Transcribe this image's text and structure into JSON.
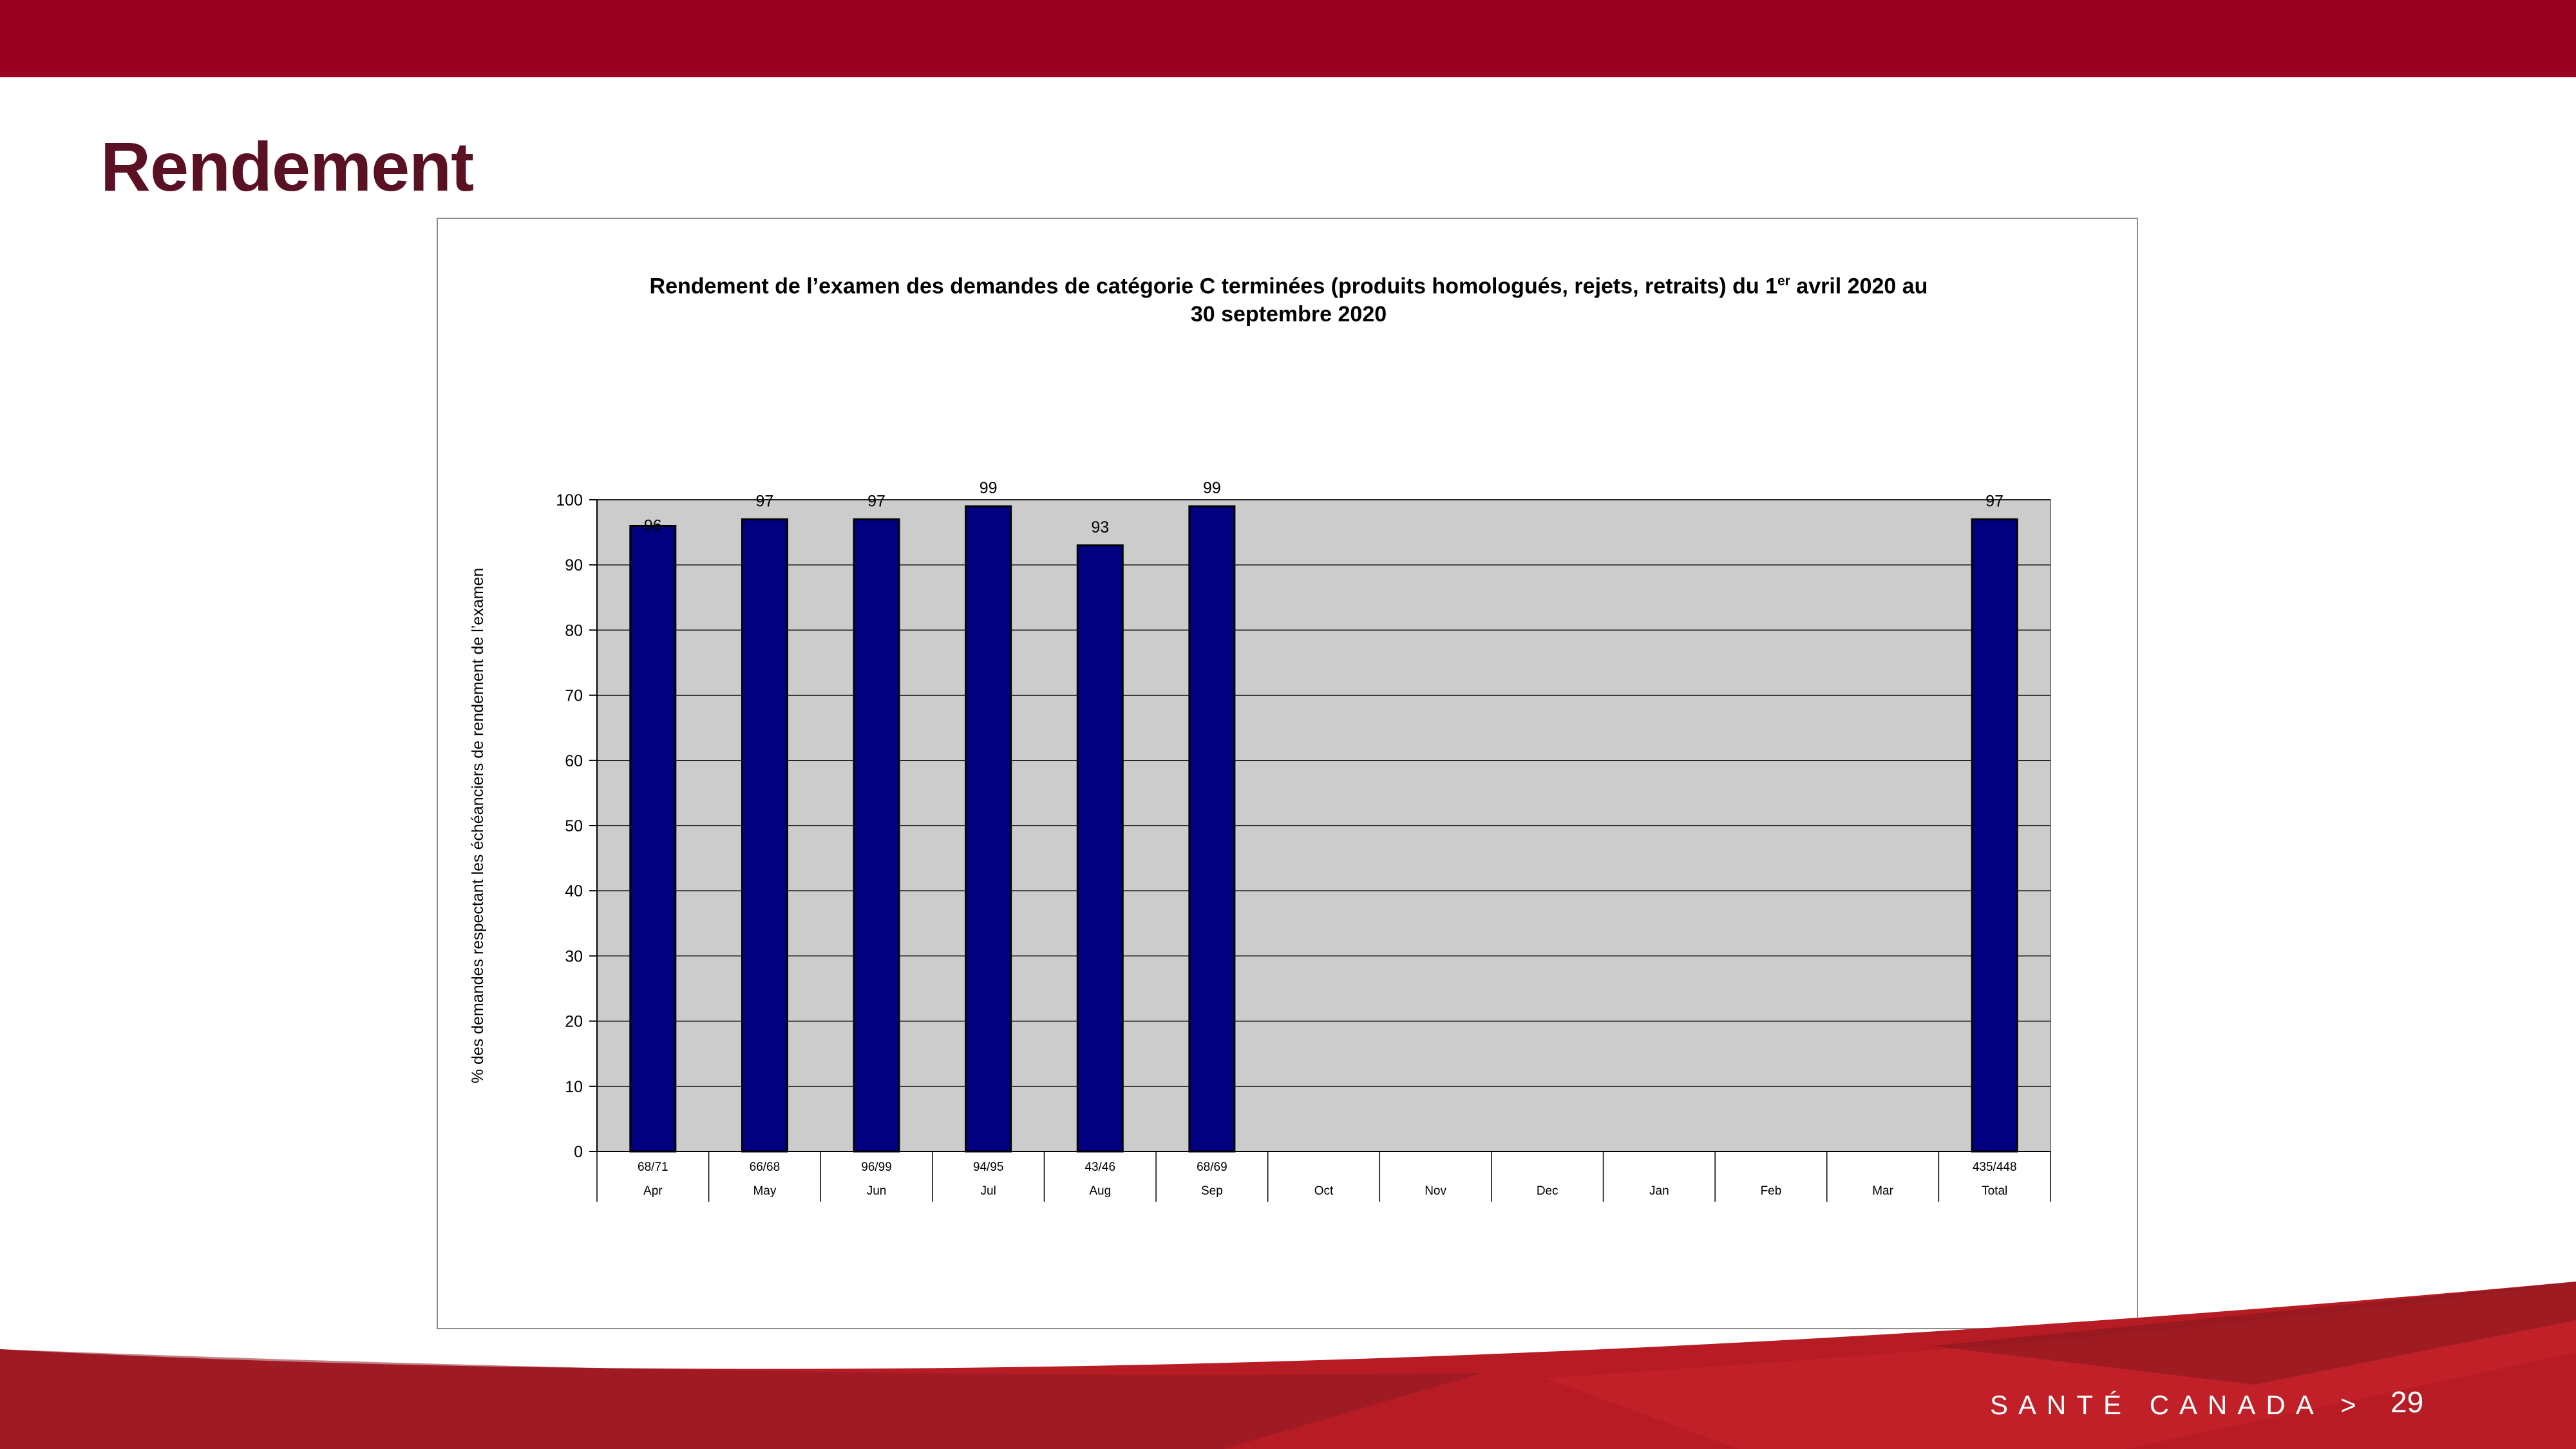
{
  "slide": {
    "title": "Rendement",
    "footer_brand": "SANTÉ CANADA >",
    "page_number": "29"
  },
  "colors": {
    "top_bar": "#98001f",
    "title": "#5a1123",
    "bar_fill": "#000080",
    "plot_background": "#cccccc",
    "footer_red": "#b71c24"
  },
  "chart_data": {
    "type": "bar",
    "title_part1": "Rendement de l’examen des demandes de catégorie C terminées (produits homologués, rejets, retraits) du 1",
    "title_sup": "er",
    "title_part2": " avril 2020 au",
    "title_line2": "30 septembre 2020",
    "ylabel": "% des demandes respectant les échéanciers de rendement de l’examen",
    "ylim": [
      0,
      100
    ],
    "yticks": [
      0,
      10,
      20,
      30,
      40,
      50,
      60,
      70,
      80,
      90,
      100
    ],
    "grid": true,
    "categories": [
      "Apr",
      "May",
      "Jun",
      "Jul",
      "Aug",
      "Sep",
      "Oct",
      "Nov",
      "Dec",
      "Jan",
      "Feb",
      "Mar",
      "Total"
    ],
    "counts": [
      "68/71",
      "66/68",
      "96/99",
      "94/95",
      "43/46",
      "68/69",
      "",
      "",
      "",
      "",
      "",
      "",
      "435/448"
    ],
    "values": [
      96,
      97,
      97,
      99,
      93,
      99,
      null,
      null,
      null,
      null,
      null,
      null,
      97
    ],
    "data_labels": [
      "96",
      "97",
      "97",
      "99",
      "93",
      "99",
      "",
      "",
      "",
      "",
      "",
      "",
      "97"
    ]
  }
}
